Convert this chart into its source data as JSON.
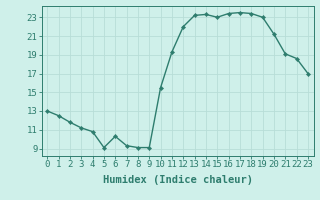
{
  "x": [
    0,
    1,
    2,
    3,
    4,
    5,
    6,
    7,
    8,
    9,
    10,
    11,
    12,
    13,
    14,
    15,
    16,
    17,
    18,
    19,
    20,
    21,
    22,
    23
  ],
  "y": [
    13,
    12.5,
    11.8,
    11.2,
    10.8,
    9.1,
    10.3,
    9.3,
    9.1,
    9.1,
    15.5,
    19.3,
    22.0,
    23.2,
    23.3,
    23.0,
    23.4,
    23.5,
    23.4,
    23.0,
    21.2,
    19.1,
    18.6,
    17.0
  ],
  "line_color": "#2e7d6e",
  "marker": "D",
  "marker_size": 2.2,
  "bg_color": "#cff0ea",
  "grid_major_color": "#b8ddd7",
  "grid_minor_color": "#d4eeea",
  "xlabel": "Humidex (Indice chaleur)",
  "yticks": [
    9,
    11,
    13,
    15,
    17,
    19,
    21,
    23
  ],
  "xticks": [
    0,
    1,
    2,
    3,
    4,
    5,
    6,
    7,
    8,
    9,
    10,
    11,
    12,
    13,
    14,
    15,
    16,
    17,
    18,
    19,
    20,
    21,
    22,
    23
  ],
  "xlim": [
    -0.5,
    23.5
  ],
  "ylim": [
    8.2,
    24.2
  ],
  "tick_fontsize": 6.5,
  "label_fontsize": 7.5
}
